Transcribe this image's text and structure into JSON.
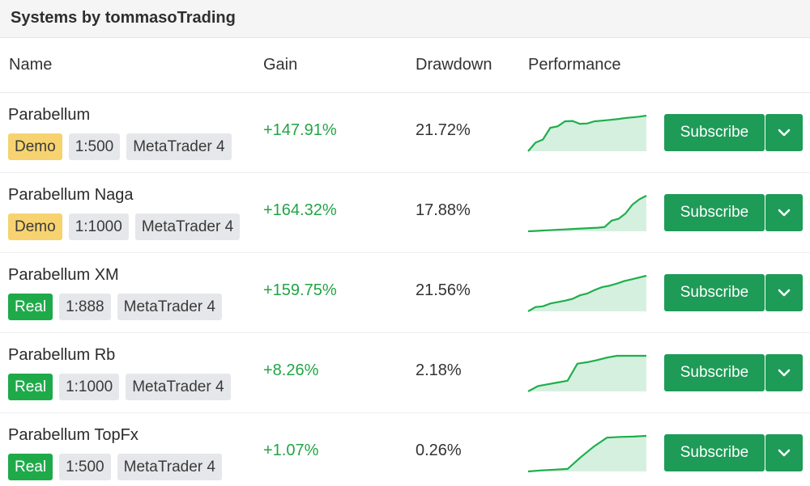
{
  "panel": {
    "title": "Systems by tommasoTrading"
  },
  "columns": {
    "name": "Name",
    "gain": "Gain",
    "drawdown": "Drawdown",
    "performance": "Performance"
  },
  "colors": {
    "accent": "#1e9b57",
    "gain_text": "#22a447",
    "demo_tag": "#f6d370",
    "real_tag": "#1faa4a",
    "spark_line": "#1fae4c",
    "spark_fill": "#d5f0df"
  },
  "icons": {
    "caret": "chevron-down-icon"
  },
  "subscribe_label": "Subscribe",
  "rows": [
    {
      "name": "Parabellum",
      "account_type": "Demo",
      "leverage": "1:500",
      "platform": "MetaTrader 4",
      "gain": "+147.91%",
      "drawdown": "21.72%",
      "performance": [
        0.0,
        0.24,
        0.33,
        0.66,
        0.7,
        0.84,
        0.85,
        0.77,
        0.78,
        0.84,
        0.86,
        0.88,
        0.9,
        0.93,
        0.95,
        0.97,
        1.0
      ]
    },
    {
      "name": "Parabellum Naga",
      "account_type": "Demo",
      "leverage": "1:1000",
      "platform": "MetaTrader 4",
      "gain": "+164.32%",
      "drawdown": "17.88%",
      "performance": [
        0.0,
        0.01,
        0.02,
        0.03,
        0.04,
        0.05,
        0.06,
        0.07,
        0.08,
        0.09,
        0.1,
        0.12,
        0.3,
        0.35,
        0.5,
        0.75,
        0.9,
        1.0
      ]
    },
    {
      "name": "Parabellum XM",
      "account_type": "Real",
      "leverage": "1:888",
      "platform": "MetaTrader 4",
      "gain": "+159.75%",
      "drawdown": "21.56%",
      "performance": [
        0.0,
        0.12,
        0.14,
        0.22,
        0.26,
        0.3,
        0.35,
        0.45,
        0.5,
        0.6,
        0.68,
        0.72,
        0.78,
        0.85,
        0.9,
        0.95,
        1.0
      ]
    },
    {
      "name": "Parabellum Rb",
      "account_type": "Real",
      "leverage": "1:1000",
      "platform": "MetaTrader 4",
      "gain": "+8.26%",
      "drawdown": "2.18%",
      "performance": [
        0.0,
        0.15,
        0.2,
        0.25,
        0.3,
        0.78,
        0.82,
        0.88,
        0.95,
        1.0,
        1.0,
        1.0,
        1.0
      ]
    },
    {
      "name": "Parabellum TopFx",
      "account_type": "Real",
      "leverage": "1:500",
      "platform": "MetaTrader 4",
      "gain": "+1.07%",
      "drawdown": "0.26%",
      "performance": [
        0.0,
        0.03,
        0.05,
        0.07,
        0.4,
        0.7,
        0.95,
        0.97,
        0.98,
        1.0
      ]
    }
  ]
}
